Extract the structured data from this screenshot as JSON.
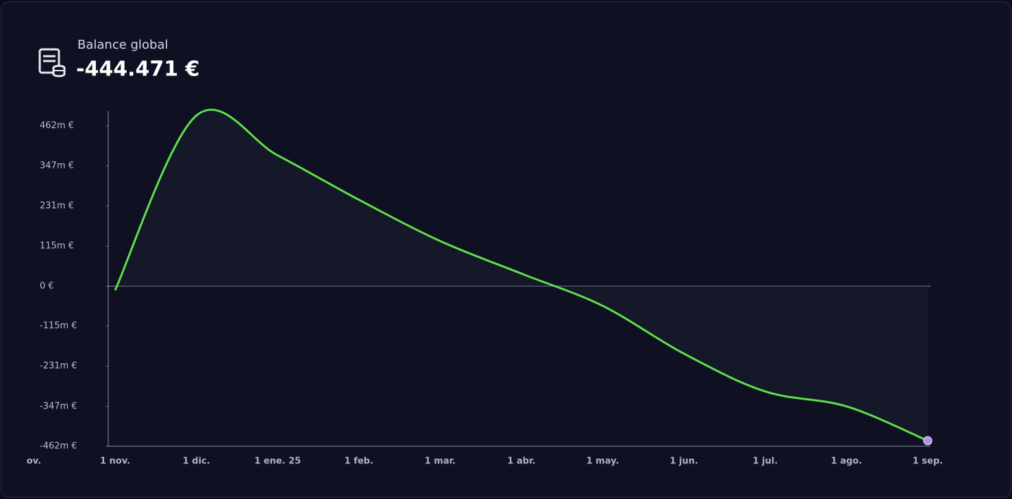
{
  "header": {
    "title": "Balance global",
    "value": "-444.471 €"
  },
  "chart_data": {
    "type": "line",
    "x": [
      "ov.",
      "1 nov.",
      "1 dic.",
      "1 ene. 25",
      "1 feb.",
      "1 mar.",
      "1 abr.",
      "1 may.",
      "1 jun.",
      "1 jul.",
      "1 ago.",
      "1 sep."
    ],
    "values": [
      null,
      -12,
      492,
      377,
      249,
      130,
      36,
      -57,
      -195,
      -304,
      -347,
      -446
    ],
    "color": "#5ee04a",
    "end_marker_color": "#b58cf5",
    "ylim": [
      -462,
      505
    ],
    "yticks": [
      {
        "value": 462,
        "label": "462m €"
      },
      {
        "value": 347,
        "label": "347m €"
      },
      {
        "value": 231,
        "label": "231m €"
      },
      {
        "value": 115,
        "label": "115m €"
      },
      {
        "value": 0,
        "label": "0 €"
      },
      {
        "value": -115,
        "label": "-115m €"
      },
      {
        "value": -231,
        "label": "-231m €"
      },
      {
        "value": -347,
        "label": "-347m €"
      },
      {
        "value": -462,
        "label": "-462m €"
      }
    ]
  }
}
